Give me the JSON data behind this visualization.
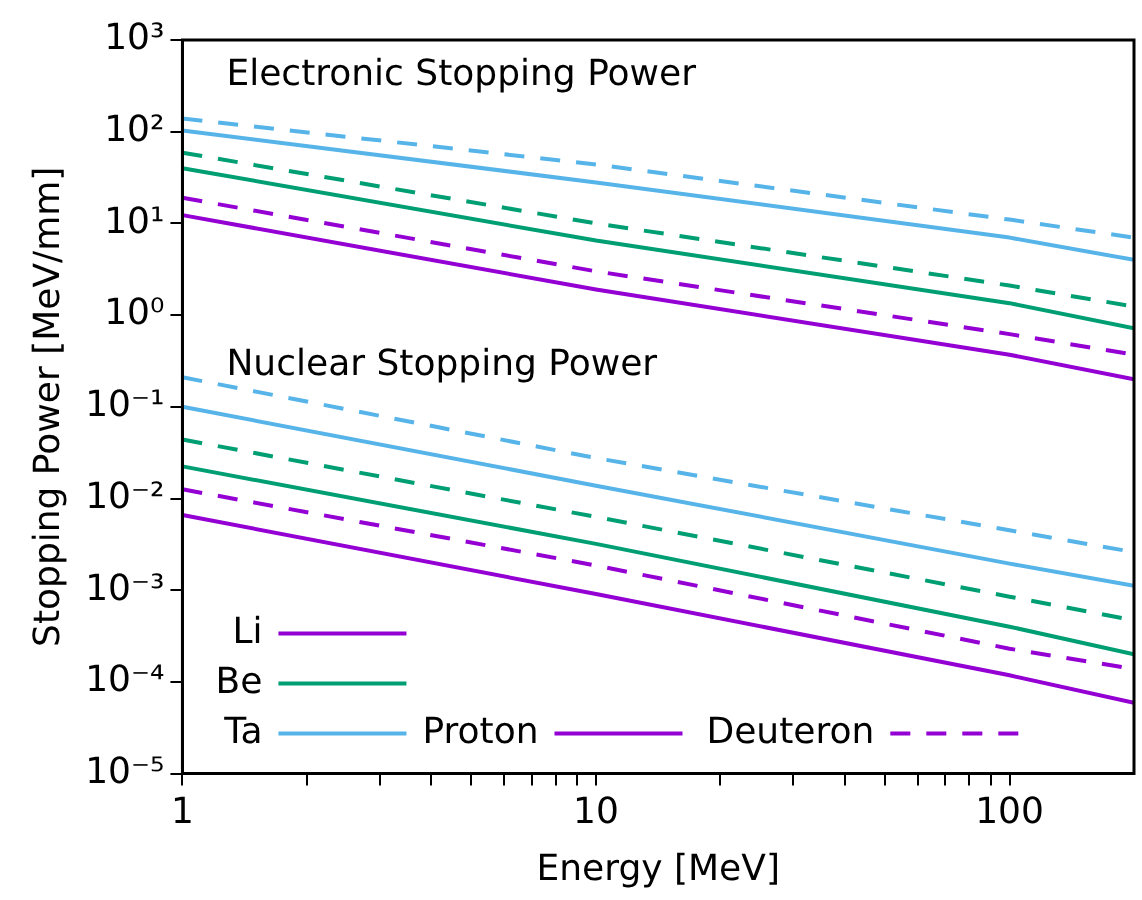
{
  "chart_data": {
    "type": "line",
    "xlabel": "Energy [MeV]",
    "ylabel": "Stopping Power [MeV/mm]",
    "annotations": [
      "Electronic Stopping Power",
      "Nuclear Stopping Power"
    ],
    "log": "xy",
    "grid": false,
    "legend": "bottom left",
    "x": [
      1,
      10,
      100,
      200
    ],
    "xlim": [
      1,
      200
    ],
    "xticks": [
      1,
      {
        "value": 2,
        "label": null
      },
      {
        "value": 3,
        "label": null
      },
      {
        "value": 4,
        "label": null
      },
      {
        "value": 5,
        "label": null
      },
      {
        "value": 6,
        "label": null
      },
      {
        "value": 7,
        "label": null
      },
      {
        "value": 8,
        "label": null
      },
      {
        "value": 9,
        "label": null
      },
      10,
      {
        "value": 20,
        "label": null
      },
      {
        "value": 30,
        "label": null
      },
      {
        "value": 40,
        "label": null
      },
      {
        "value": 50,
        "label": null
      },
      {
        "value": 60,
        "label": null
      },
      {
        "value": 70,
        "label": null
      },
      {
        "value": 80,
        "label": null
      },
      {
        "value": 90,
        "label": null
      },
      100
    ],
    "ylim": [
      1e-05,
      1000
    ],
    "yticks": [
      {
        "value": 1e-05,
        "label": "10⁻⁵"
      },
      {
        "value": 0.0001,
        "label": "10⁻⁴"
      },
      {
        "value": 0.001,
        "label": "10⁻³"
      },
      {
        "value": 0.01,
        "label": "10⁻²"
      },
      {
        "value": 0.1,
        "label": "10⁻¹"
      },
      {
        "value": 1,
        "label": "10⁰"
      },
      {
        "value": 10,
        "label": "10¹"
      },
      {
        "value": 100,
        "label": "10²"
      },
      {
        "value": 1000,
        "label": "10³"
      }
    ],
    "series": [
      {
        "name": "Li",
        "color": "#9400d3",
        "line_style": "solid",
        "values": [
          12.3,
          1.9,
          0.37,
          0.2
        ]
      },
      {
        "name": "Be",
        "color": "#009e73",
        "line_style": "solid",
        "values": [
          40,
          6.5,
          1.35,
          0.72
        ]
      },
      {
        "name": "Ta",
        "color": "#56b4e9",
        "line_style": "solid",
        "values": [
          103,
          28,
          7,
          4.0
        ]
      },
      {
        "name": "Proton",
        "color": "#9400d3",
        "line_style": "solid",
        "values": [
          0.0066,
          0.00091,
          0.000118,
          5.9e-05
        ]
      },
      {
        "name": "Deuteron",
        "color": "#9400d3",
        "line_style": "dashed",
        "values": [
          19,
          3.0,
          0.62,
          0.37
        ]
      },
      {
        "color": "#009e73",
        "line_style": "dashed",
        "values": [
          59,
          10,
          2.1,
          1.24
        ]
      },
      {
        "color": "#56b4e9",
        "line_style": "dashed",
        "values": [
          139,
          44,
          11,
          7
        ]
      },
      {
        "color": "#9400d3",
        "line_style": "dashed",
        "values": [
          0.0126,
          0.00186,
          0.00023,
          0.000138
        ]
      },
      {
        "color": "#009e73",
        "line_style": "solid",
        "values": [
          0.0224,
          0.0032,
          0.0004,
          0.0002
        ]
      },
      {
        "color": "#009e73",
        "line_style": "dashed",
        "values": [
          0.044,
          0.0063,
          0.00085,
          0.00047
        ]
      },
      {
        "color": "#56b4e9",
        "line_style": "solid",
        "values": [
          0.1,
          0.0138,
          0.00195,
          0.00112
        ]
      },
      {
        "color": "#56b4e9",
        "line_style": "dashed",
        "values": [
          0.21,
          0.0276,
          0.0045,
          0.0026
        ]
      }
    ]
  }
}
